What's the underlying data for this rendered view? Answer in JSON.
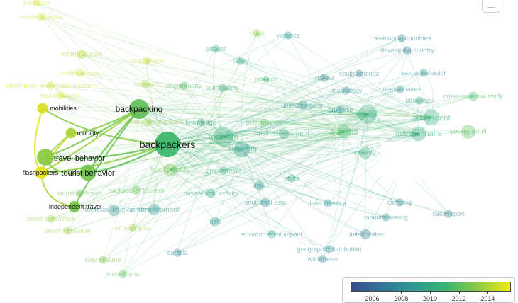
{
  "colorbar": {
    "ticks": [
      {
        "label": "2006",
        "value": 2006
      },
      {
        "label": "2008",
        "value": 2008
      },
      {
        "label": "2010",
        "value": 2010
      },
      {
        "label": "2012",
        "value": 2012
      },
      {
        "label": "2014",
        "value": 2014
      }
    ],
    "min": 2004.5,
    "max": 2015.6,
    "colors": [
      "#3b4d8a",
      "#33769a",
      "#2d9a90",
      "#39b56f",
      "#8fcc43",
      "#f2ea1a"
    ]
  },
  "map": {
    "nodes": [
      {
        "label": "backpackers",
        "year": 2011.3,
        "weight": 30,
        "strong": true
      },
      {
        "label": "backpacking",
        "year": 2012.2,
        "weight": 18,
        "strong": true
      },
      {
        "label": "travel behavior",
        "year": 2013.3,
        "weight": 13,
        "strong": true
      },
      {
        "label": "tourist behavior",
        "year": 2012.7,
        "weight": 12,
        "strong": true
      },
      {
        "label": "mobility",
        "year": 2014,
        "weight": 5,
        "strong": true
      },
      {
        "label": "mobilities",
        "year": 2015,
        "weight": 5,
        "strong": true
      },
      {
        "label": "flashpackers",
        "year": 2015.3,
        "weight": 7,
        "strong": true
      },
      {
        "label": "independent travel",
        "year": 2012.8,
        "weight": 6,
        "strong": true
      },
      {
        "label": "tourism",
        "year": 2010.5,
        "weight": 18,
        "strong": false
      },
      {
        "label": "travel",
        "year": 2010.2,
        "weight": 16,
        "strong": false
      },
      {
        "label": "australia",
        "year": 2009.3,
        "weight": 12,
        "strong": false
      },
      {
        "label": "adolescent",
        "year": 2010.6,
        "weight": 12,
        "strong": false
      },
      {
        "label": "questionnaire",
        "year": 2010.3,
        "weight": 10,
        "strong": false
      },
      {
        "label": "young adult",
        "year": 2012,
        "weight": 9,
        "strong": false
      },
      {
        "label": "thailand",
        "year": 2011.5,
        "weight": 8,
        "strong": false
      },
      {
        "label": "priority",
        "year": 2010.7,
        "weight": 7,
        "strong": false
      },
      {
        "label": "backpacker",
        "year": 2012.6,
        "weight": 8,
        "strong": false
      },
      {
        "label": "development",
        "year": 2008.6,
        "weight": 6,
        "strong": false
      },
      {
        "label": "tourism development",
        "year": 2008.6,
        "weight": 6,
        "strong": false
      },
      {
        "label": "risk assessment",
        "year": 2010,
        "weight": 5,
        "strong": false
      },
      {
        "label": "united kingdom",
        "year": 2008.8,
        "weight": 4,
        "strong": false
      },
      {
        "label": "smartphones",
        "year": 2014.2,
        "weight": 4,
        "strong": false
      },
      {
        "label": "smartphone",
        "year": 2014.6,
        "weight": 3,
        "strong": false
      },
      {
        "label": "mobile phone",
        "year": 2014.7,
        "weight": 3,
        "strong": false
      },
      {
        "label": "information and communication",
        "year": 2014.8,
        "weight": 3,
        "strong": false
      },
      {
        "label": "social network",
        "year": 2014.9,
        "weight": 3,
        "strong": false
      },
      {
        "label": "sustainable development",
        "year": 2013.5,
        "weight": 3,
        "strong": false
      },
      {
        "label": "internet",
        "year": 2013.7,
        "weight": 3,
        "strong": false
      },
      {
        "label": "photography",
        "year": 2011.8,
        "weight": 3,
        "strong": false
      },
      {
        "label": "authenticity",
        "year": 2011,
        "weight": 3,
        "strong": false
      },
      {
        "label": "gender",
        "year": 2010.5,
        "weight": 3,
        "strong": false
      },
      {
        "label": "safety",
        "year": 2010.4,
        "weight": 3,
        "strong": false
      },
      {
        "label": "china",
        "year": 2013,
        "weight": 3,
        "strong": false
      },
      {
        "label": "violence",
        "year": 2009,
        "weight": 3,
        "strong": false
      },
      {
        "label": "developing countries",
        "year": 2007.8,
        "weight": 3,
        "strong": false
      },
      {
        "label": "developing country",
        "year": 2007.6,
        "weight": 3,
        "strong": false
      },
      {
        "label": "review",
        "year": 2008,
        "weight": 3,
        "strong": false
      },
      {
        "label": "south america",
        "year": 2007.7,
        "weight": 3,
        "strong": false
      },
      {
        "label": "sexual behavior",
        "year": 2008.2,
        "weight": 3,
        "strong": false
      },
      {
        "label": "psychology",
        "year": 2008.5,
        "weight": 3,
        "strong": false
      },
      {
        "label": "questionnaires",
        "year": 2008.1,
        "weight": 3,
        "strong": false
      },
      {
        "label": "ethnology",
        "year": 2009.5,
        "weight": 3,
        "strong": false
      },
      {
        "label": "cross-sectional study",
        "year": 2011.5,
        "weight": 4,
        "strong": false
      },
      {
        "label": "drug use",
        "year": 2008.4,
        "weight": 3,
        "strong": false
      },
      {
        "label": "knowledge",
        "year": 2010.1,
        "weight": 3,
        "strong": false
      },
      {
        "label": "performance",
        "year": 2012,
        "weight": 3,
        "strong": false
      },
      {
        "label": "research",
        "year": 2010.8,
        "weight": 2,
        "strong": false
      },
      {
        "label": "employment",
        "year": 2010.6,
        "weight": 3,
        "strong": false
      },
      {
        "label": "africa",
        "year": 2009.5,
        "weight": 3,
        "strong": false
      },
      {
        "label": "asia",
        "year": 2009,
        "weight": 4,
        "strong": false
      },
      {
        "label": "southeast asia",
        "year": 2008.6,
        "weight": 4,
        "strong": false
      },
      {
        "label": "latin america",
        "year": 2008.4,
        "weight": 3,
        "strong": false
      },
      {
        "label": "camping",
        "year": 2008,
        "weight": 3,
        "strong": false
      },
      {
        "label": "mountaineering",
        "year": 2008.2,
        "weight": 3,
        "strong": false
      },
      {
        "label": "case report",
        "year": 2007.8,
        "weight": 3,
        "strong": false
      },
      {
        "label": "united states",
        "year": 2007.5,
        "weight": 5,
        "strong": false
      },
      {
        "label": "environmental impact",
        "year": 2009,
        "weight": 3,
        "strong": false
      },
      {
        "label": "geographic distribution",
        "year": 2008,
        "weight": 3,
        "strong": false
      },
      {
        "label": "wilderness",
        "year": 2008,
        "weight": 3,
        "strong": false
      },
      {
        "label": "recreational activity",
        "year": 2009.5,
        "weight": 4,
        "strong": false
      },
      {
        "label": "backpacker tourism",
        "year": 2012.3,
        "weight": 4,
        "strong": false
      },
      {
        "label": "tourist attraction",
        "year": 2012.5,
        "weight": 3,
        "strong": false
      },
      {
        "label": "india",
        "year": 2008.9,
        "weight": 4,
        "strong": false
      },
      {
        "label": "ethnography",
        "year": 2013.6,
        "weight": 3,
        "strong": false
      },
      {
        "label": "eurasia",
        "year": 2008,
        "weight": 3,
        "strong": false
      },
      {
        "label": "new zealand",
        "year": 2012.9,
        "weight": 3,
        "strong": false
      },
      {
        "label": "motivations",
        "year": 2012,
        "weight": 3,
        "strong": false
      },
      {
        "label": "travel experience",
        "year": 2013.6,
        "weight": 3,
        "strong": false
      },
      {
        "label": "travel motivation",
        "year": 2013.8,
        "weight": 3,
        "strong": false
      },
      {
        "label": "mobile devices",
        "year": 2014.8,
        "weight": 3,
        "strong": false
      },
      {
        "label": "e-tourism",
        "year": 2015,
        "weight": 3,
        "strong": false
      }
    ]
  }
}
